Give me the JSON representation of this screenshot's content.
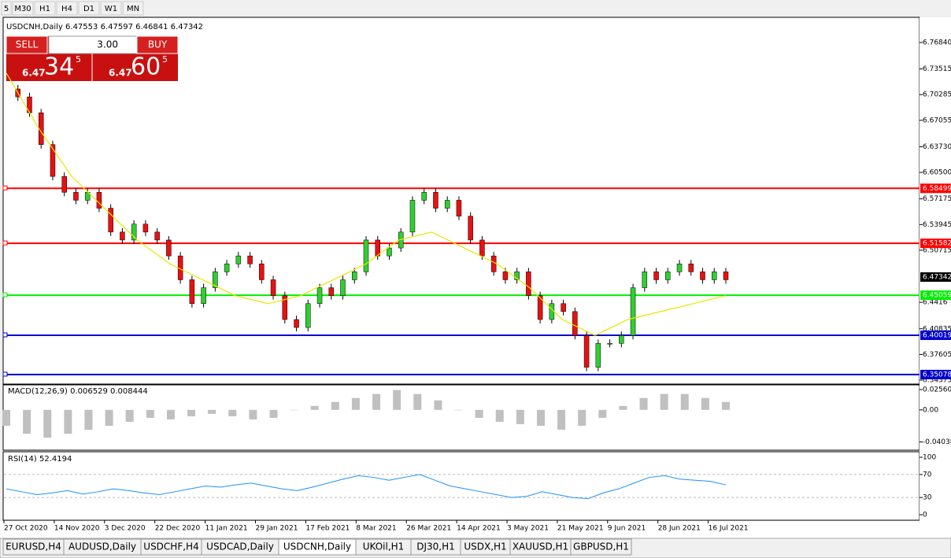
{
  "toolbar": [
    "5",
    "M30",
    "H1",
    "H4",
    "D1",
    "W1",
    "MN"
  ],
  "symbol_bar": {
    "symbol": "USDCNH,Daily",
    "open": "6.47553",
    "high": "6.47597",
    "low": "6.46841",
    "close": "6.47342"
  },
  "trade_panel": {
    "sell": "SELL",
    "buy": "BUY",
    "lots": "3.00",
    "bid_big": "6.47",
    "bid_pips": "34",
    "bid_frac": "5",
    "ask_big": "6.47",
    "ask_pips": "60",
    "ask_frac": "5"
  },
  "chart": {
    "ylim": [
      6.3398,
      6.8001
    ],
    "yticks": [
      {
        "value": 6.7684,
        "label": "6.76840"
      },
      6.73515,
      6.70285,
      6.67055,
      {
        "value": 6.6373,
        "label": "6.63730"
      },
      {
        "value": 6.605,
        "label": "6.60500"
      },
      6.57175,
      6.53945,
      6.50715,
      6.4416,
      6.40835,
      6.37605,
      6.34375
    ],
    "current": 6.47342,
    "levels": [
      {
        "value": 6.58499,
        "color": "#ff0000"
      },
      {
        "value": 6.51582,
        "color": "#ff0000"
      },
      {
        "value": 6.45059,
        "color": "#00ee00"
      },
      {
        "value": 6.40019,
        "color": "#0000cc"
      },
      {
        "value": 6.35078,
        "color": "#0000cc"
      }
    ],
    "closes": [
      6.71,
      6.7,
      6.68,
      6.64,
      6.6,
      6.58,
      6.57,
      6.58,
      6.56,
      6.53,
      6.52,
      6.54,
      6.53,
      6.52,
      6.5,
      6.47,
      6.44,
      6.46,
      6.48,
      6.49,
      6.5,
      6.49,
      6.47,
      6.45,
      6.42,
      6.41,
      6.44,
      6.46,
      6.45,
      6.47,
      6.48,
      6.52,
      6.5,
      6.51,
      6.53,
      6.57,
      6.58,
      6.56,
      6.57,
      6.55,
      6.52,
      6.5,
      6.48,
      6.47,
      6.48,
      6.45,
      6.42,
      6.44,
      6.43,
      6.4,
      6.36,
      6.39,
      6.39,
      6.4,
      6.46,
      6.48,
      6.47,
      6.48,
      6.49,
      6.48,
      6.47,
      6.48,
      6.47
    ],
    "ma": [
      6.73,
      6.66,
      6.6,
      6.56,
      6.52,
      6.49,
      6.47,
      6.45,
      6.44,
      6.45,
      6.47,
      6.49,
      6.52,
      6.53,
      6.51,
      6.49,
      6.46,
      6.42,
      6.4,
      6.42,
      6.43,
      6.44,
      6.45
    ],
    "dates": [
      "27 Oct 2020",
      "14 Nov 2020",
      "3 Dec 2020",
      "22 Dec 2020",
      "11 Jan 2021",
      "29 Jan 2021",
      "17 Feb 2021",
      "8 Mar 2021",
      "26 Mar 2021",
      "14 Apr 2021",
      "3 May 2021",
      "21 May 2021",
      "9 Jun 2021",
      "28 Jun 2021",
      "16 Jul 2021"
    ],
    "macd": {
      "label": "MACD(12,26,9) 0.006529 0.008444",
      "ylim": [
        -0.0507,
        0.0315
      ],
      "yticks": [
        0.025605,
        {
          "value": 0,
          "label": "0.00"
        },
        {
          "value": -0.04038,
          "label": "-0.04038"
        }
      ],
      "hist": [
        -0.02,
        -0.03,
        -0.035,
        -0.03,
        -0.025,
        -0.02,
        -0.015,
        -0.01,
        -0.012,
        -0.008,
        -0.005,
        -0.008,
        -0.012,
        -0.01,
        0.0,
        0.005,
        0.01,
        0.015,
        0.02,
        0.025,
        0.02,
        0.012,
        0.0,
        -0.01,
        -0.015,
        -0.018,
        -0.02,
        -0.025,
        -0.02,
        -0.01,
        0.005,
        0.015,
        0.02,
        0.02,
        0.015,
        0.01
      ]
    },
    "rsi": {
      "label": "RSI(14) 52.4194",
      "ylim": [
        -8.2,
        109.6
      ],
      "yticks": [
        100,
        70,
        30,
        0
      ],
      "values": [
        45,
        40,
        35,
        38,
        42,
        36,
        40,
        45,
        42,
        38,
        35,
        40,
        45,
        50,
        48,
        52,
        55,
        50,
        45,
        42,
        48,
        55,
        62,
        68,
        65,
        60,
        65,
        70,
        60,
        50,
        45,
        40,
        35,
        30,
        32,
        40,
        35,
        30,
        28,
        38,
        45,
        55,
        65,
        68,
        62,
        60,
        58,
        52
      ]
    }
  },
  "tabs": [
    "EURUSD,H4",
    "AUDUSD,Daily",
    "USDCHF,H4",
    "USDCAD,Daily",
    "USDCNH,Daily",
    "UKOil,H1",
    "DJ30,H1",
    "USDX,H1",
    "XAUUSD,H1",
    "GBPUSD,H1"
  ]
}
